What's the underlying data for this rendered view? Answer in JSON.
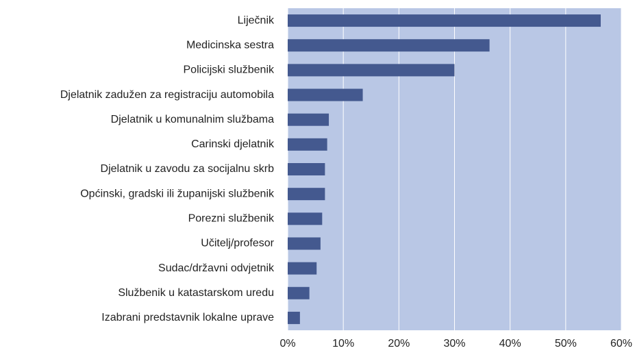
{
  "chart_data": {
    "type": "hbar",
    "categories": [
      "Liječnik",
      "Medicinska sestra",
      "Policijski službenik",
      "Djelatnik zadužen za registraciju automobila",
      "Djelatnik u komunalnim službama",
      "Carinski djelatnik",
      "Djelatnik u zavodu za socijalnu skrb",
      "Općinski, gradski ili županijski službenik",
      "Porezni službenik",
      "Učitelj/profesor",
      "Sudac/državni odvjetnik",
      "Službenik u katastarskom uredu",
      "Izabrani predstavnik lokalne uprave"
    ],
    "values": [
      56.3,
      36.3,
      30.0,
      13.5,
      7.4,
      7.1,
      6.7,
      6.7,
      6.2,
      5.9,
      5.2,
      3.9,
      2.2
    ],
    "color": "#44598f",
    "plot_background": "#b9c7e5",
    "grid": true,
    "xlim": [
      0,
      60
    ],
    "xticks": [
      {
        "value": 0,
        "label": "0%"
      },
      {
        "value": 10,
        "label": "10%"
      },
      {
        "value": 20,
        "label": "20%"
      },
      {
        "value": 30,
        "label": "30%"
      },
      {
        "value": 40,
        "label": "40%"
      },
      {
        "value": 50,
        "label": "50%"
      },
      {
        "value": 60,
        "label": "60%"
      }
    ]
  }
}
